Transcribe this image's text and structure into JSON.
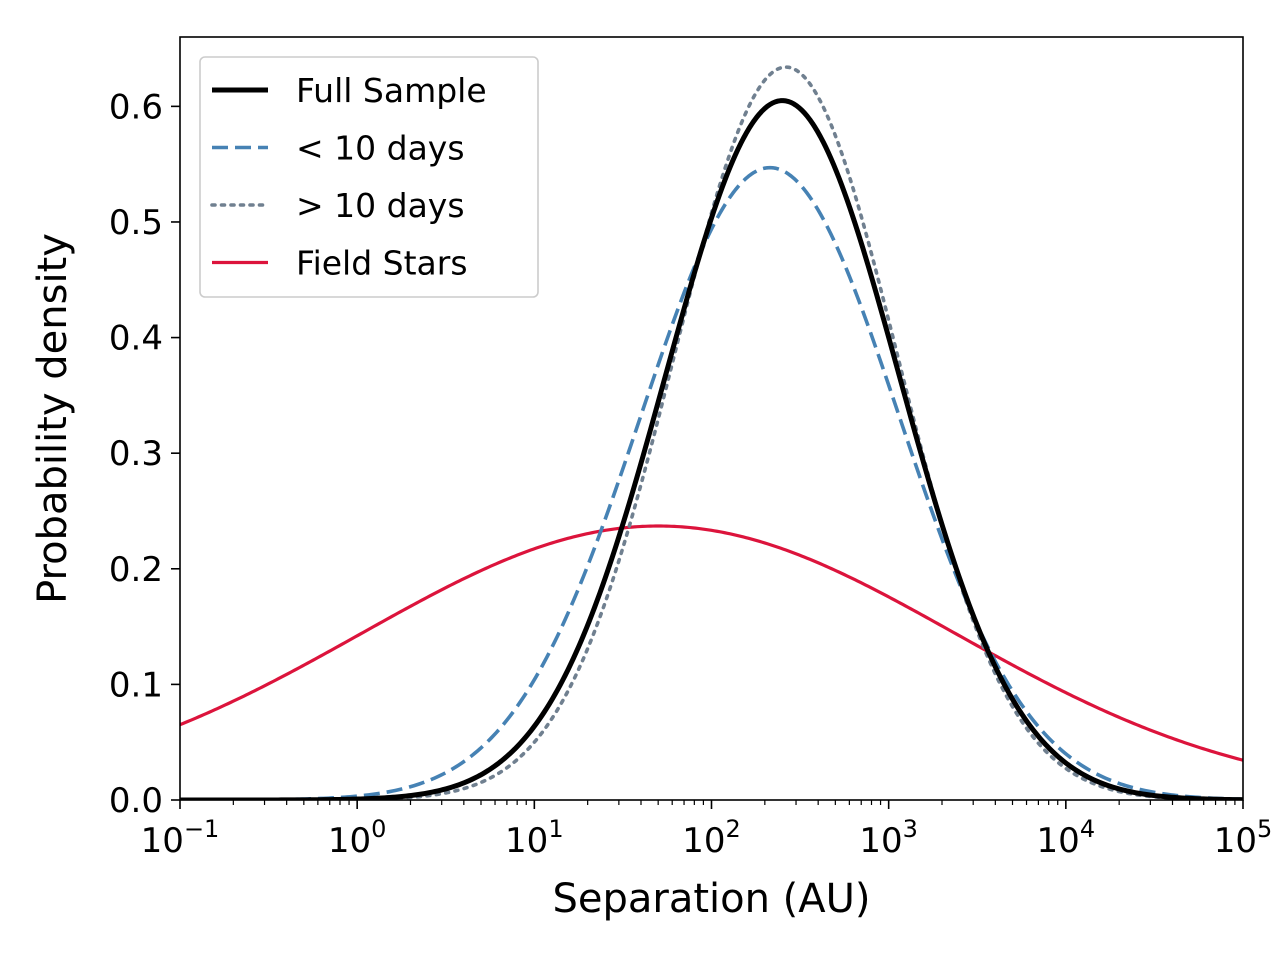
{
  "chart_data": {
    "type": "line",
    "title": "",
    "xlabel": "Separation (AU)",
    "ylabel": "Probability density",
    "xscale": "log",
    "xlim": [
      0.1,
      100000
    ],
    "ylim": [
      0.0,
      0.66
    ],
    "x_ticks": [
      {
        "value": 0.1,
        "base": "10",
        "exp": "−1"
      },
      {
        "value": 1,
        "base": "10",
        "exp": "0"
      },
      {
        "value": 10,
        "base": "10",
        "exp": "1"
      },
      {
        "value": 100,
        "base": "10",
        "exp": "2"
      },
      {
        "value": 1000,
        "base": "10",
        "exp": "3"
      },
      {
        "value": 10000,
        "base": "10",
        "exp": "4"
      },
      {
        "value": 100000,
        "base": "10",
        "exp": "5"
      }
    ],
    "y_ticks": [
      "0.0",
      "0.1",
      "0.2",
      "0.3",
      "0.4",
      "0.5",
      "0.6"
    ],
    "legend_position": "top-left",
    "series": [
      {
        "name": "Full Sample",
        "model": "lognormal",
        "log10_mean": 2.4,
        "sigma_log10": 0.66,
        "peak": 0.605,
        "color": "#000000",
        "style": "solid"
      },
      {
        "name": "< 10 days",
        "model": "lognormal",
        "log10_mean": 2.33,
        "sigma_log10": 0.73,
        "peak": 0.547,
        "color": "#4682b4",
        "style": "dashed"
      },
      {
        "name": "> 10 days",
        "model": "lognormal",
        "log10_mean": 2.42,
        "sigma_log10": 0.63,
        "peak": 0.634,
        "color": "#708090",
        "style": "dotted"
      },
      {
        "name": "Field Stars",
        "model": "lognormal",
        "log10_mean": 1.7,
        "sigma_log10": 1.68,
        "peak": 0.237,
        "color": "#dc143c",
        "style": "solid"
      }
    ]
  }
}
